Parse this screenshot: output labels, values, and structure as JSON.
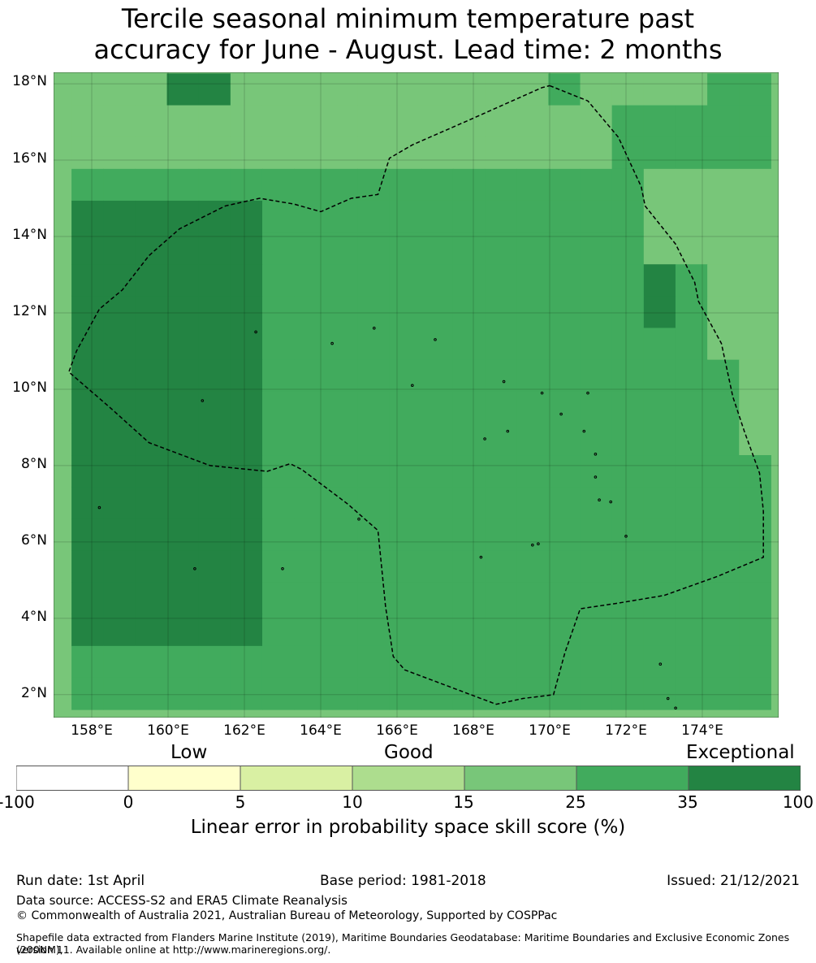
{
  "title": {
    "line1": "Tercile seasonal minimum temperature past",
    "line2": "accuracy for June - August. Lead time: 2 months"
  },
  "map": {
    "lat_labels": [
      "18°N",
      "16°N",
      "14°N",
      "12°N",
      "10°N",
      "8°N",
      "6°N",
      "4°N",
      "2°N"
    ],
    "lon_labels": [
      "158°E",
      "160°E",
      "162°E",
      "164°E",
      "166°E",
      "168°E",
      "170°E",
      "172°E",
      "174°E"
    ],
    "extent": {
      "lon_min": 157.0,
      "lon_max": 176.0,
      "lat_min": 1.4,
      "lat_max": 18.3
    },
    "grid_origin": {
      "lon": 157.47,
      "lat": 18.27
    },
    "grid_step_deg": 0.833,
    "class_colors": [
      "#ffffff",
      "#ffffcc",
      "#d9f0a3",
      "#addd8e",
      "#78c679",
      "#41ab5d",
      "#238443"
    ],
    "grid_cells": [
      "4446644444444445444455",
      "4444444444444444455555",
      "4444444444444444455555",
      "5555555555555555554444",
      "6666665555555555554444",
      "6666665555555555554444",
      "6666665555555555556544",
      "6666665555555555556544",
      "6666665555555555555544",
      "6666665555555555555554",
      "6666665555555555555554",
      "6666665555555555555554",
      "6666665555555555555555",
      "6666665555555555555555",
      "6666665555555555555555",
      "6666665555555555555555",
      "6666665555555555555555",
      "6666665555555555555555",
      "5555555555555555555555",
      "5555555555555555555555"
    ],
    "eez_boundary": [
      [
        170.0,
        17.95
      ],
      [
        171.0,
        17.55
      ],
      [
        171.8,
        16.6
      ],
      [
        172.4,
        15.3
      ],
      [
        172.5,
        14.8
      ],
      [
        173.3,
        13.8
      ],
      [
        173.8,
        12.8
      ],
      [
        173.9,
        12.3
      ],
      [
        174.5,
        11.2
      ],
      [
        174.8,
        9.8
      ],
      [
        175.1,
        8.9
      ],
      [
        175.5,
        7.8
      ],
      [
        175.6,
        6.8
      ],
      [
        175.6,
        5.6
      ],
      [
        174.4,
        5.1
      ],
      [
        173.0,
        4.6
      ],
      [
        171.8,
        4.4
      ],
      [
        170.8,
        4.25
      ],
      [
        170.4,
        3.1
      ],
      [
        170.1,
        2.0
      ],
      [
        169.3,
        1.9
      ],
      [
        168.6,
        1.75
      ],
      [
        167.8,
        2.05
      ],
      [
        166.2,
        2.65
      ],
      [
        165.9,
        3.0
      ],
      [
        165.7,
        4.3
      ],
      [
        165.5,
        6.3
      ],
      [
        164.7,
        7.0
      ],
      [
        163.5,
        7.9
      ],
      [
        163.2,
        8.05
      ],
      [
        162.6,
        7.85
      ],
      [
        161.1,
        8.0
      ],
      [
        159.5,
        8.6
      ],
      [
        158.5,
        9.5
      ],
      [
        157.4,
        10.45
      ],
      [
        157.6,
        11.0
      ],
      [
        158.2,
        12.1
      ],
      [
        158.8,
        12.6
      ],
      [
        159.5,
        13.5
      ],
      [
        160.3,
        14.2
      ],
      [
        161.5,
        14.8
      ],
      [
        162.4,
        15.0
      ],
      [
        163.3,
        14.85
      ],
      [
        164.0,
        14.65
      ],
      [
        164.8,
        15.0
      ],
      [
        165.5,
        15.1
      ],
      [
        165.8,
        16.05
      ],
      [
        166.4,
        16.4
      ],
      [
        168.0,
        17.1
      ],
      [
        169.8,
        17.9
      ],
      [
        170.0,
        17.95
      ]
    ],
    "islands": [
      [
        169.55,
        5.92
      ],
      [
        169.7,
        5.95
      ],
      [
        171.3,
        7.1
      ],
      [
        171.6,
        7.05
      ],
      [
        172.0,
        6.15
      ],
      [
        172.9,
        2.8
      ],
      [
        173.1,
        1.9
      ],
      [
        173.3,
        1.65
      ],
      [
        158.2,
        6.9
      ],
      [
        160.7,
        5.3
      ],
      [
        163.0,
        5.3
      ],
      [
        166.4,
        10.1
      ],
      [
        167.0,
        11.3
      ],
      [
        168.8,
        10.2
      ],
      [
        171.0,
        9.9
      ],
      [
        170.3,
        9.35
      ],
      [
        169.8,
        9.9
      ],
      [
        168.9,
        8.9
      ],
      [
        168.3,
        8.7
      ],
      [
        164.3,
        11.2
      ],
      [
        165.4,
        11.6
      ],
      [
        160.9,
        9.7
      ],
      [
        162.3,
        11.5
      ],
      [
        170.9,
        8.9
      ],
      [
        171.2,
        8.3
      ],
      [
        171.2,
        7.7
      ],
      [
        168.2,
        5.6
      ],
      [
        165.0,
        6.6
      ]
    ]
  },
  "colorbar": {
    "categories": {
      "low": "Low",
      "good": "Good",
      "exceptional": "Exceptional"
    },
    "ticks": [
      "-100",
      "0",
      "5",
      "10",
      "15",
      "25",
      "35",
      "100"
    ],
    "colors": [
      "#ffffff",
      "#ffffcc",
      "#d9f0a3",
      "#addd8e",
      "#78c679",
      "#41ab5d",
      "#238443"
    ],
    "label": "Linear error in probability space skill score (%)"
  },
  "footer": {
    "run_date": "Run date: 1st April",
    "base_period": "Base period: 1981-2018",
    "issued": "Issued: 21/12/2021",
    "data_source": "Data source: ACCESS-S2 and ERA5 Climate Reanalysis",
    "copyright": "© Commonwealth of Australia 2021, Australian Bureau of Meteorology, Supported by COSPPac",
    "shapefile_1": "Shapefile data extracted from Flanders Marine Institute (2019), Maritime Boundaries Geodatabase: Maritime Boundaries and Exclusive Economic Zones (200NM),",
    "shapefile_2": "version 11. Available online at http://www.marineregions.org/."
  }
}
